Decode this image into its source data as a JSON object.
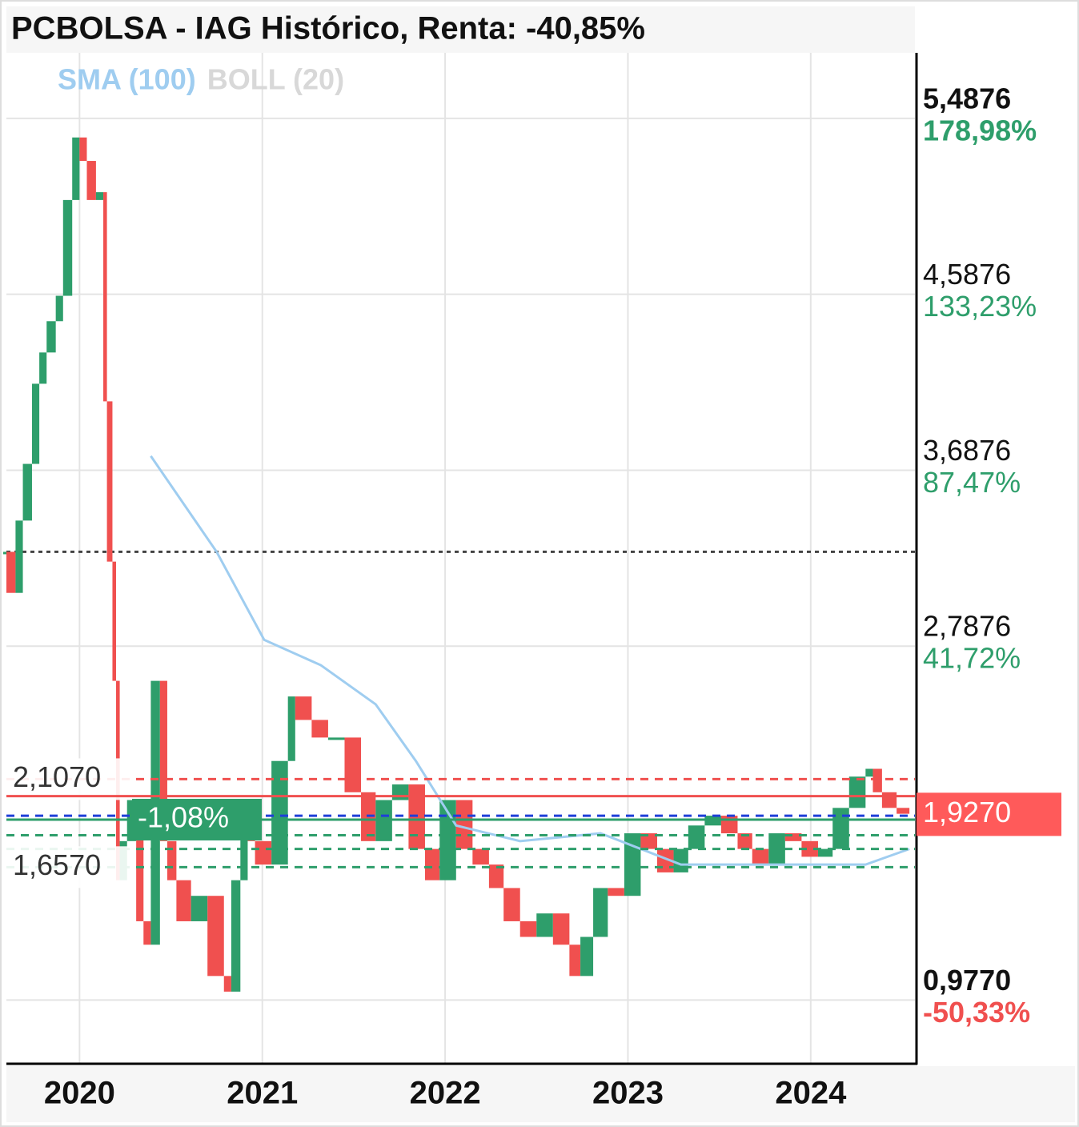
{
  "chart_data": {
    "type": "stock",
    "title": "PCBOLSA - IAG Histórico, Renta: -40,85%",
    "xlim": [
      2019.6,
      2024.57
    ],
    "xticks": [
      2020,
      2021,
      2022,
      2023,
      2024
    ],
    "ylim": [
      0.655,
      5.823
    ],
    "yticks": [
      {
        "value": 5.4876,
        "label": "5,4876"
      },
      {
        "value": 4.5876,
        "label": "4,5876"
      },
      {
        "value": 3.6876,
        "label": "3,6876"
      },
      {
        "value": 2.7876,
        "label": "2,7876"
      },
      {
        "value": 0.977,
        "label": "0,9770"
      }
    ],
    "ytick_changes": [
      {
        "value": 178.98,
        "label": "178,98%"
      },
      {
        "value": 133.23,
        "label": "133,23%"
      },
      {
        "value": 87.47,
        "label": "87,47%"
      },
      {
        "value": 41.72,
        "label": "41,72%"
      },
      {
        "value": -50.33,
        "label": "-50,33%"
      }
    ],
    "grid": true,
    "up_color": "#2e9e6b",
    "down_color": "#f0504f",
    "series": [
      {
        "name": "IAG",
        "x": [
          2019.6,
          2019.65,
          2019.69,
          2019.74,
          2019.78,
          2019.82,
          2019.87,
          2019.91,
          2019.96,
          2020.0,
          2020.04,
          2020.09,
          2020.13,
          2020.15,
          2020.18,
          2020.2,
          2020.22,
          2020.26,
          2020.31,
          2020.35,
          2020.39,
          2020.44,
          2020.48,
          2020.53,
          2020.61,
          2020.7,
          2020.79,
          2020.83,
          2020.88,
          2020.92,
          2020.96,
          2021.05,
          2021.14,
          2021.18,
          2021.27,
          2021.36,
          2021.45,
          2021.54,
          2021.62,
          2021.71,
          2021.8,
          2021.89,
          2021.97,
          2022.06,
          2022.15,
          2022.24,
          2022.32,
          2022.41,
          2022.5,
          2022.59,
          2022.68,
          2022.74,
          2022.81,
          2022.89,
          2022.98,
          2023.07,
          2023.16,
          2023.25,
          2023.33,
          2023.42,
          2023.51,
          2023.6,
          2023.68,
          2023.77,
          2023.86,
          2023.95,
          2024.04,
          2024.12,
          2024.21,
          2024.3,
          2024.34,
          2024.39,
          2024.47,
          2024.54
        ],
        "values": [
          3.27,
          3.06,
          3.43,
          3.72,
          4.13,
          4.29,
          4.45,
          4.58,
          5.07,
          5.39,
          5.27,
          5.07,
          5.11,
          4.04,
          3.22,
          2.61,
          1.59,
          1.79,
          2.0,
          1.38,
          1.26,
          2.61,
          1.79,
          1.59,
          1.38,
          1.51,
          1.1,
          1.02,
          1.59,
          1.92,
          1.79,
          1.67,
          2.2,
          2.53,
          2.41,
          2.32,
          2.32,
          2.04,
          1.79,
          2.0,
          2.08,
          1.75,
          1.59,
          2.0,
          1.75,
          1.67,
          1.55,
          1.38,
          1.3,
          1.42,
          1.26,
          1.1,
          1.3,
          1.55,
          1.51,
          1.83,
          1.75,
          1.63,
          1.75,
          1.87,
          1.92,
          1.83,
          1.75,
          1.67,
          1.83,
          1.79,
          1.71,
          1.75,
          1.96,
          2.12,
          2.16,
          2.04,
          1.96,
          1.93
        ]
      },
      {
        "name": "SMA (100)",
        "color": "#9fcdf0",
        "x": [
          2020.39,
          2020.75,
          2021.01,
          2021.32,
          2021.62,
          2021.84,
          2022.06,
          2022.41,
          2022.85,
          2023.29,
          2023.95,
          2024.3,
          2024.54
        ],
        "values": [
          3.76,
          3.27,
          2.82,
          2.69,
          2.49,
          2.2,
          1.87,
          1.79,
          1.83,
          1.67,
          1.67,
          1.67,
          1.75
        ]
      }
    ],
    "legend": [
      {
        "name": "SMA (100)",
        "color": "#9fcdf0"
      },
      {
        "name": "BOLL (20)",
        "color": "#d8d8d8"
      }
    ],
    "reference_line": {
      "value": 3.27,
      "color": "#444444"
    },
    "levels": [
      {
        "value": 2.107,
        "color": "#f0504f",
        "dash": true,
        "label": "2,1070"
      },
      {
        "value": 2.02,
        "color": "#f0504f",
        "dash": false
      },
      {
        "value": 1.92,
        "color": "#1f3fd8",
        "dash": true
      },
      {
        "value": 1.9,
        "color": "#2e9e6b",
        "dash": false,
        "label": "-1,08%"
      },
      {
        "value": 1.82,
        "color": "#2e9e6b",
        "dash": true
      },
      {
        "value": 1.75,
        "color": "#2e9e6b",
        "dash": true
      },
      {
        "value": 1.657,
        "color": "#2e9e6b",
        "dash": true,
        "label": "1,6570"
      }
    ],
    "last_price": {
      "value": 1.927,
      "label": "1,9270",
      "color": "#ff5a5a"
    }
  }
}
